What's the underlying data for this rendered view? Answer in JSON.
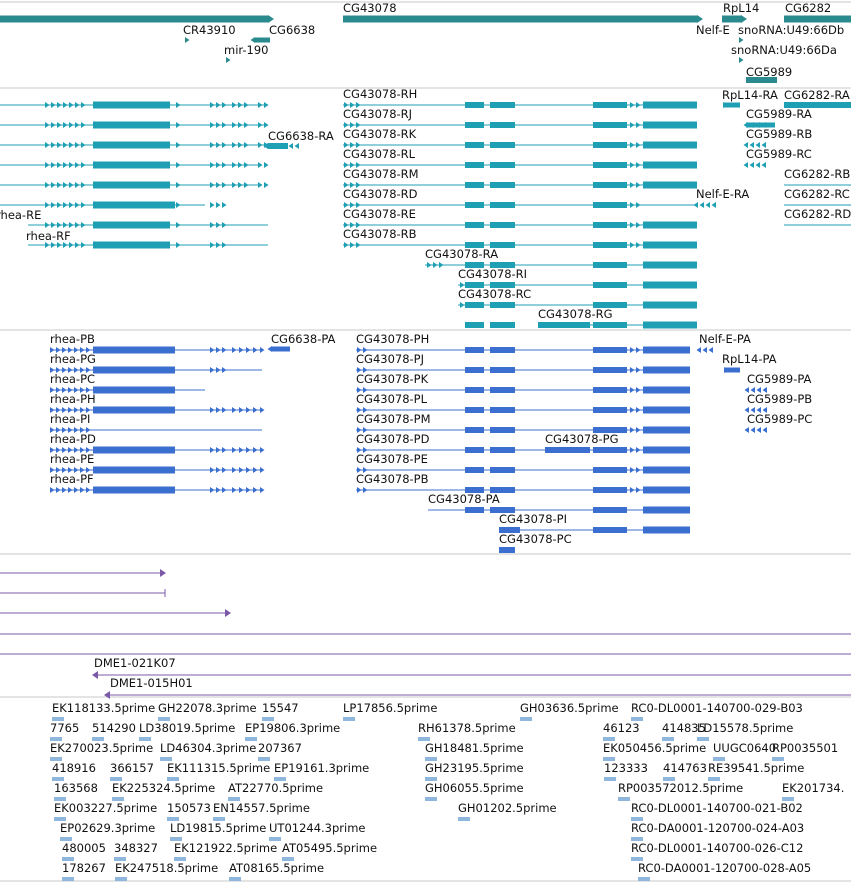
{
  "colors": {
    "gene": "#2a8a8e",
    "transcript": "#1f9fb4",
    "protein": "#3a6fd0",
    "clone": "#7b58a8",
    "est": "#8fb6dc",
    "separator": "#c8c8c8"
  },
  "tracks": {
    "genes": {
      "labels": [
        "CR43910",
        "CG6638",
        "mir-190",
        "CG43078",
        "RpL14",
        "CG6282",
        "Nelf-E",
        "snoRNA:U49:66Db",
        "snoRNA:U49:66Da",
        "CG5989"
      ]
    },
    "transcripts": {
      "labels": [
        "rhea-RE",
        "rhea-RF",
        "CG6638-RA",
        "CG43078-RH",
        "CG43078-RJ",
        "CG43078-RK",
        "CG43078-RL",
        "CG43078-RM",
        "CG43078-RD",
        "CG43078-RE",
        "CG43078-RB",
        "CG43078-RA",
        "CG43078-RI",
        "CG43078-RC",
        "CG43078-RG",
        "RpL14-RA",
        "CG6282-RA",
        "CG5989-RA",
        "CG5989-RB",
        "CG5989-RC",
        "Nelf-E-RA",
        "CG6282-RB",
        "CG6282-RC",
        "CG6282-RD"
      ]
    },
    "proteins": {
      "labels": [
        "rhea-PB",
        "rhea-PG",
        "rhea-PC",
        "rhea-PH",
        "rhea-PI",
        "rhea-PD",
        "rhea-PE",
        "rhea-PF",
        "CG6638-PA",
        "CG43078-PH",
        "CG43078-PJ",
        "CG43078-PK",
        "CG43078-PL",
        "CG43078-PM",
        "CG43078-PD",
        "CG43078-PE",
        "CG43078-PB",
        "CG43078-PA",
        "CG43078-PG",
        "CG43078-PI",
        "CG43078-PC",
        "Nelf-E-PA",
        "RpL14-PA",
        "CG5989-PA",
        "CG5989-PB",
        "CG5989-PC"
      ]
    },
    "clones": {
      "labels": [
        "DME1-021K07",
        "DME1-015H01"
      ]
    },
    "ests": {
      "labels": [
        "EK118133.5prime",
        "GH22078.3prime",
        "15547",
        "LP17856.5prime",
        "GH03636.5prime",
        "RC0-DL0001-140700-029-B03",
        "7765",
        "514290",
        "LD38019.5prime",
        "EP19806.3prime",
        "RH61378.5prime",
        "46123",
        "414835",
        "LD15578.5prime",
        "EK270023.5prime",
        "LD46304.3prime",
        "207367",
        "GH18481.5prime",
        "EK050456.5prime",
        "UUGC0640",
        "RP0035501",
        "418916",
        "366157",
        "EK111315.5prime",
        "EP19161.3prime",
        "GH23195.5prime",
        "123333",
        "414763",
        "RE39541.5prime",
        "163568",
        "EK225324.5prime",
        "AT22770.5prime",
        "GH06055.5prime",
        "RP003572012.5prime",
        "EK201734.",
        "EK003227.5prime",
        "150573",
        "EN14557.5prime",
        "GH01202.5prime",
        "RC0-DL0001-140700-021-B02",
        "EP02629.3prime",
        "LD19815.5prime",
        "UT01244.3prime",
        "RC0-DA0001-120700-024-A03",
        "480005",
        "348327",
        "EK121922.5prime",
        "AT05495.5prime",
        "RC0-DL0001-140700-026-C12",
        "178267",
        "EK247518.5prime",
        "AT08165.5prime",
        "RC0-DA0001-120700-028-A05"
      ]
    }
  }
}
